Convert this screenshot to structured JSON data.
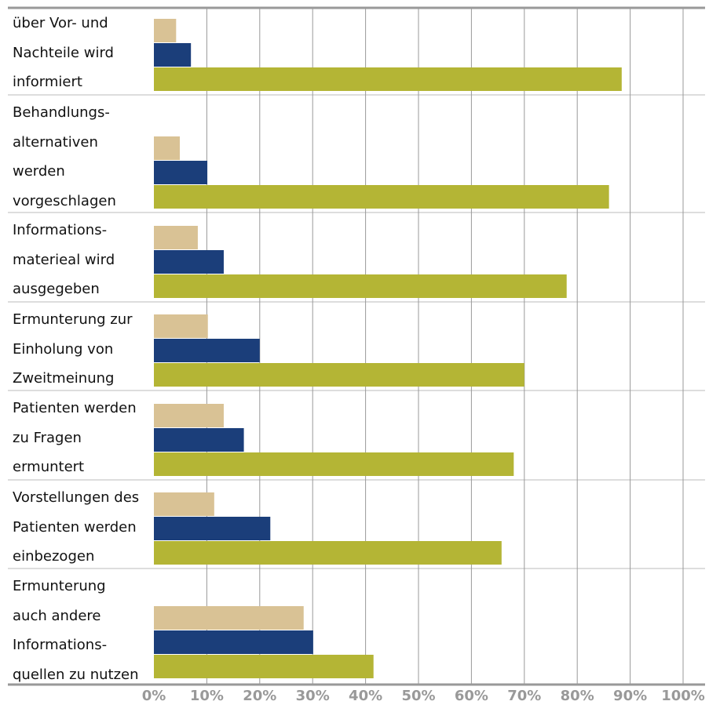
{
  "chart_data": {
    "type": "bar",
    "orientation": "horizontal",
    "categories": [
      "über Vor- und\nNachteile wird\ninformiert",
      "Behandlungs-\nalternativen\nwerden\nvorgeschlagen",
      "Informations-\nmaterieal wird\nausgegeben",
      "Ermunterung zur\nEinholung von\nZweitmeinung",
      "Patienten werden\nzu Fragen\nermuntert",
      "Vorstellungen des\nPatienten werden\neinbezogen",
      "Ermunterung\nauch andere\nInformations-\nquellen zu nutzen"
    ],
    "series": [
      {
        "color": "#d9c295",
        "values": [
          4.2,
          4.9,
          8.3,
          10.2,
          13.2,
          11.4,
          28.3
        ]
      },
      {
        "color": "#1b3e7a",
        "values": [
          7,
          10.1,
          13.2,
          20,
          17,
          22,
          30.1
        ]
      },
      {
        "color": "#b4b535",
        "values": [
          88.4,
          86,
          78,
          70,
          68,
          65.7,
          41.5
        ]
      }
    ],
    "xlim": [
      0,
      100
    ],
    "xticks": [
      {
        "value": 0,
        "label": "0%"
      },
      {
        "value": 10,
        "label": "10%"
      },
      {
        "value": 20,
        "label": "20%"
      },
      {
        "value": 30,
        "label": "30%"
      },
      {
        "value": 40,
        "label": "40%"
      },
      {
        "value": 50,
        "label": "50%"
      },
      {
        "value": 60,
        "label": "60%"
      },
      {
        "value": 70,
        "label": "70%"
      },
      {
        "value": 80,
        "label": "80%"
      },
      {
        "value": 90,
        "label": "90%"
      },
      {
        "value": 100,
        "label": "100%"
      }
    ],
    "grid": true
  }
}
